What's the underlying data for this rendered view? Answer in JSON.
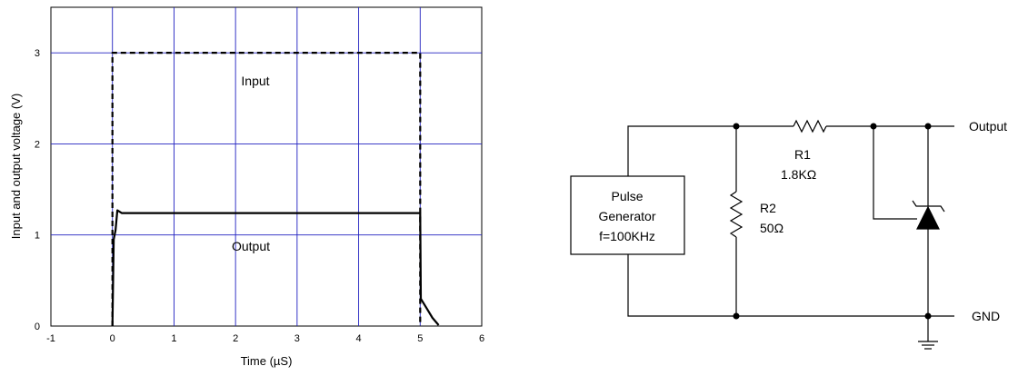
{
  "chart_data": {
    "type": "line",
    "xlabel": "Time (µS)",
    "ylabel": "Input and output voltage (V)",
    "xlim": [
      -1,
      6
    ],
    "ylim": [
      0,
      3.5
    ],
    "xticks": [
      -1,
      0,
      1,
      2,
      3,
      4,
      5,
      6
    ],
    "yticks": [
      0,
      1,
      2,
      3
    ],
    "grid": true,
    "series": [
      {
        "name": "Input",
        "style": "dashed",
        "color": "#000000",
        "points": [
          [
            0,
            0
          ],
          [
            0,
            3
          ],
          [
            5,
            3
          ],
          [
            5,
            0
          ]
        ]
      },
      {
        "name": "Output",
        "style": "solid",
        "color": "#000000",
        "points": [
          [
            0,
            0
          ],
          [
            0.02,
            0.95
          ],
          [
            0.05,
            1.05
          ],
          [
            0.08,
            1.27
          ],
          [
            0.15,
            1.24
          ],
          [
            5,
            1.24
          ],
          [
            5.01,
            0.3
          ],
          [
            5.1,
            0.2
          ],
          [
            5.2,
            0.09
          ],
          [
            5.3,
            0.01
          ]
        ]
      }
    ],
    "annotations": [
      "Input",
      "Output"
    ],
    "grid_color": "#2020c0"
  },
  "circuit": {
    "generator": [
      "Pulse",
      "Generator",
      "f=100KHz"
    ],
    "r1": {
      "name": "R1",
      "value": "1.8KΩ"
    },
    "r2": {
      "name": "R2",
      "value": "50Ω"
    },
    "output_label": "Output",
    "gnd_label": "GND"
  }
}
